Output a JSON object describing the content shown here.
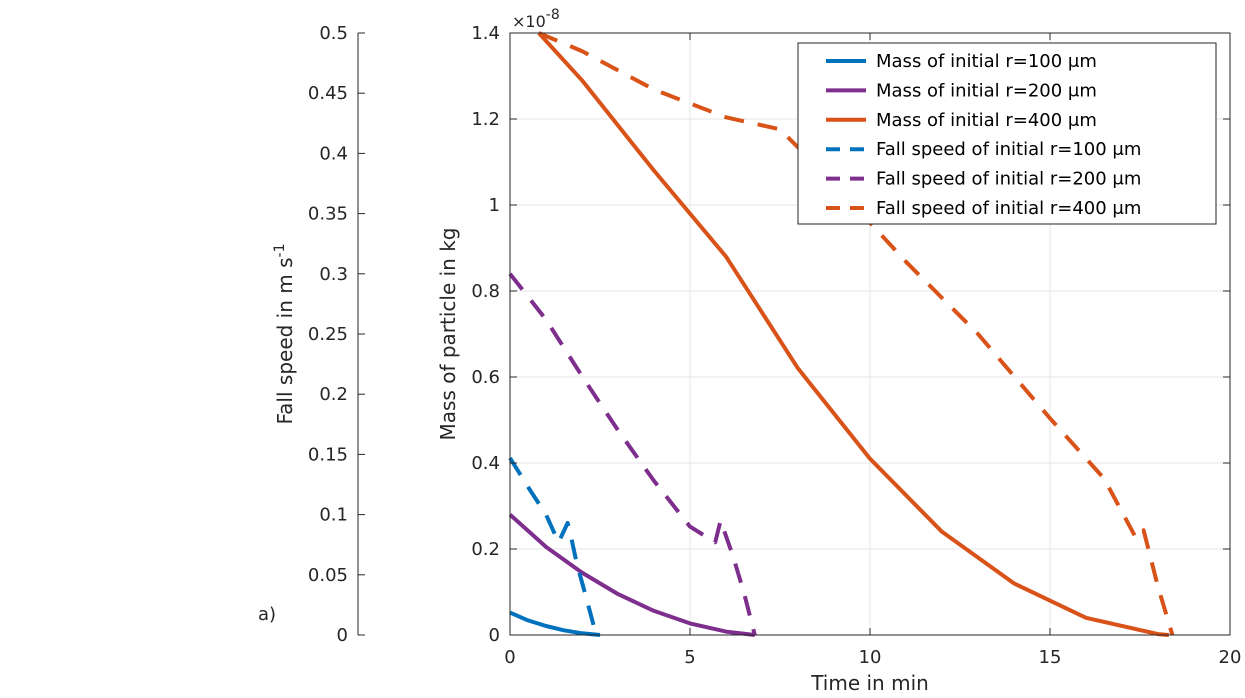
{
  "chart_data": {
    "type": "line",
    "panel_label": "a)",
    "xlabel": "Time in min",
    "ylabel_left": "Fall speed in m s",
    "ylabel_left_sup": "-1",
    "ylabel_right": "Mass of particle in kg",
    "exponent_label": "×10",
    "exponent_label_sup": "-8",
    "xlim": [
      0,
      20
    ],
    "ylim_mass_e8": [
      0,
      1.4
    ],
    "ylim_speed": [
      0,
      0.5
    ],
    "xticks": [
      "0",
      "5",
      "10",
      "15",
      "20"
    ],
    "yticks_mass": [
      "0",
      "0.2",
      "0.4",
      "0.6",
      "0.8",
      "1",
      "1.2",
      "1.4"
    ],
    "yticks_speed": [
      "0",
      "0.05",
      "0.1",
      "0.15",
      "0.2",
      "0.25",
      "0.3",
      "0.35",
      "0.4",
      "0.45",
      "0.5"
    ],
    "grid": true,
    "legend_position": "top-right",
    "series": [
      {
        "name": "Mass of initial r=100 μm",
        "axis": "mass",
        "style": "solid",
        "color": "#0072bd",
        "x": [
          0,
          0.5,
          1,
          1.5,
          2,
          2.5
        ],
        "y": [
          0.052,
          0.034,
          0.021,
          0.011,
          0.004,
          0.0
        ]
      },
      {
        "name": "Mass of initial r=200 μm",
        "axis": "mass",
        "style": "solid",
        "color": "#7e2f8e",
        "x": [
          0,
          1,
          2,
          3,
          4,
          5,
          6,
          6.8
        ],
        "y": [
          0.28,
          0.205,
          0.145,
          0.095,
          0.056,
          0.027,
          0.008,
          0.0
        ]
      },
      {
        "name": "Mass of initial r=400 μm",
        "axis": "mass",
        "style": "solid",
        "color": "#d95319",
        "x": [
          0.8,
          2,
          4,
          6,
          8,
          10,
          12,
          14,
          16,
          18,
          18.3
        ],
        "y": [
          1.4,
          1.29,
          1.08,
          0.88,
          0.62,
          0.41,
          0.24,
          0.12,
          0.04,
          0.002,
          0.0
        ]
      },
      {
        "name": "Fall speed of initial r=100 μm",
        "axis": "speed",
        "style": "dashed",
        "color": "#0072bd",
        "x": [
          0,
          0.5,
          1,
          1.35,
          1.6,
          1.65,
          1.85,
          2.1,
          2.35,
          2.5
        ],
        "y": [
          0.147,
          0.123,
          0.1,
          0.077,
          0.093,
          0.088,
          0.06,
          0.033,
          0.005,
          0.0
        ]
      },
      {
        "name": "Fall speed of initial r=200 μm",
        "axis": "speed",
        "style": "dashed",
        "color": "#7e2f8e",
        "x": [
          0,
          1,
          2,
          3,
          4,
          5,
          5.7,
          5.85,
          6.2,
          6.5,
          6.8
        ],
        "y": [
          0.3,
          0.262,
          0.215,
          0.17,
          0.128,
          0.09,
          0.077,
          0.095,
          0.065,
          0.035,
          0.0
        ]
      },
      {
        "name": "Fall speed of initial r=400 μm",
        "axis": "speed",
        "style": "dashed",
        "color": "#d95319",
        "x": [
          0.8,
          2,
          4,
          6,
          7.5,
          9,
          11,
          13,
          15,
          16.5,
          17.4,
          17.6,
          18,
          18.4
        ],
        "y": [
          0.5,
          0.485,
          0.453,
          0.43,
          0.42,
          0.375,
          0.31,
          0.25,
          0.18,
          0.13,
          0.08,
          0.087,
          0.04,
          0.0
        ]
      }
    ]
  }
}
